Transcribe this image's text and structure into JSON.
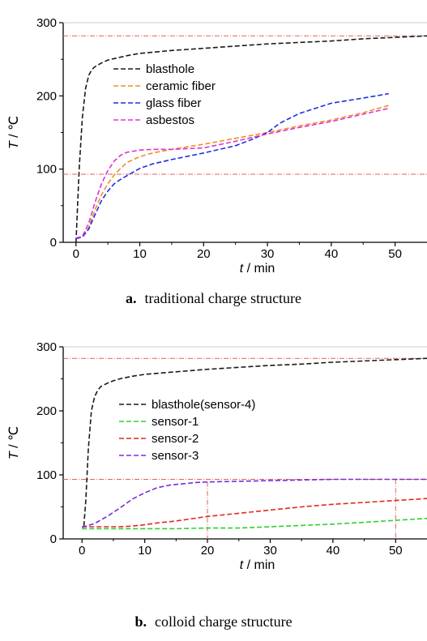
{
  "chart_data": [
    {
      "type": "line",
      "caption_letter": "a.",
      "caption_text": "traditional charge structure",
      "xlabel_var": "t",
      "xlabel_unit": " / min",
      "ylabel_var": "T",
      "ylabel_unit": " / ℃",
      "xlim": [
        -2,
        55
      ],
      "ylim": [
        0,
        300
      ],
      "xticks": [
        0,
        10,
        20,
        30,
        40,
        50
      ],
      "yticks": [
        0,
        100,
        200,
        300
      ],
      "legend_position": "top-left",
      "ref_lines": [
        {
          "y": 282,
          "color": "#e06060"
        },
        {
          "y": 93,
          "color": "#e06060"
        }
      ],
      "vref_lines": [],
      "series": [
        {
          "name": "blasthole",
          "color": "#1a1a1a",
          "x": [
            0,
            0.5,
            1,
            1.5,
            2,
            2.5,
            3,
            4,
            5,
            6,
            8,
            10,
            15,
            20,
            25,
            30,
            35,
            40,
            45,
            50,
            55
          ],
          "y": [
            0,
            100,
            170,
            210,
            228,
            236,
            240,
            245,
            249,
            251,
            255,
            258,
            262,
            265,
            268,
            271,
            273,
            275,
            278,
            280,
            282
          ]
        },
        {
          "name": "ceramic fiber",
          "color": "#ef8f2a",
          "x": [
            0,
            1,
            2,
            3,
            4,
            5,
            6,
            7,
            8,
            10,
            12,
            15,
            20,
            25,
            30,
            35,
            40,
            45,
            49
          ],
          "y": [
            6,
            8,
            20,
            45,
            65,
            80,
            92,
            101,
            109,
            117,
            122,
            127,
            134,
            142,
            150,
            159,
            167,
            177,
            187
          ]
        },
        {
          "name": "glass fiber",
          "color": "#1f2fe0",
          "x": [
            0,
            1,
            2,
            3,
            4,
            5,
            6,
            7,
            8,
            10,
            12,
            15,
            20,
            25,
            28,
            30,
            32,
            35,
            40,
            45,
            49
          ],
          "y": [
            5,
            7,
            18,
            38,
            57,
            70,
            80,
            86,
            91,
            101,
            107,
            113,
            122,
            132,
            142,
            150,
            163,
            176,
            190,
            197,
            203
          ]
        },
        {
          "name": "asbestos",
          "color": "#e032d5",
          "x": [
            0,
            1,
            2,
            3,
            4,
            5,
            6,
            7,
            8,
            10,
            12,
            15,
            20,
            25,
            30,
            35,
            40,
            45,
            49
          ],
          "y": [
            6,
            8,
            26,
            55,
            80,
            98,
            111,
            119,
            123,
            126,
            127,
            127,
            129,
            138,
            148,
            157,
            165,
            175,
            183
          ]
        }
      ]
    },
    {
      "type": "line",
      "caption_letter": "b.",
      "caption_text": "colloid charge structure",
      "xlabel_var": "t",
      "xlabel_unit": " / min",
      "ylabel_var": "T",
      "ylabel_unit": " / ℃",
      "xlim": [
        -3,
        55
      ],
      "ylim": [
        0,
        300
      ],
      "xticks": [
        0,
        10,
        20,
        30,
        40,
        50
      ],
      "yticks": [
        0,
        100,
        200,
        300
      ],
      "legend_position": "center-left",
      "ref_lines": [
        {
          "y": 282,
          "color": "#e06060"
        },
        {
          "y": 93,
          "color": "#e06060"
        }
      ],
      "vref_lines": [
        {
          "x": 20,
          "y_top": 89,
          "color": "#e06060"
        },
        {
          "x": 50,
          "y_top": 93,
          "color": "#e06060"
        }
      ],
      "series": [
        {
          "name": "blasthole(sensor-4)",
          "color": "#1a1a1a",
          "x": [
            0.3,
            0.6,
            1,
            1.5,
            2,
            2.5,
            3,
            4,
            5,
            6,
            8,
            10,
            15,
            20,
            25,
            30,
            35,
            40,
            45,
            50,
            55
          ],
          "y": [
            20,
            60,
            140,
            200,
            222,
            232,
            238,
            243,
            247,
            250,
            254,
            257,
            261,
            265,
            268,
            271,
            273,
            276,
            278,
            280,
            282
          ]
        },
        {
          "name": "sensor-1",
          "color": "#2fd02f",
          "x": [
            0,
            5,
            10,
            15,
            20,
            25,
            30,
            35,
            40,
            45,
            50,
            55
          ],
          "y": [
            16,
            16,
            16,
            16,
            17,
            17,
            19,
            21,
            23,
            26,
            29,
            32
          ]
        },
        {
          "name": "sensor-2",
          "color": "#e02a1e",
          "x": [
            0,
            3,
            6,
            8,
            10,
            12,
            15,
            20,
            25,
            30,
            35,
            40,
            45,
            50,
            55
          ],
          "y": [
            19,
            19,
            19,
            20,
            22,
            25,
            28,
            35,
            40,
            45,
            50,
            54,
            57,
            60,
            63
          ]
        },
        {
          "name": "sensor-3",
          "color": "#7a2ad8",
          "x": [
            0,
            2,
            4,
            6,
            8,
            10,
            12,
            14,
            16,
            18,
            20,
            25,
            30,
            35,
            40,
            45,
            50,
            55
          ],
          "y": [
            18,
            24,
            35,
            48,
            62,
            72,
            80,
            84,
            86,
            88,
            89,
            90,
            91,
            92,
            93,
            93,
            93,
            93
          ]
        }
      ]
    }
  ]
}
